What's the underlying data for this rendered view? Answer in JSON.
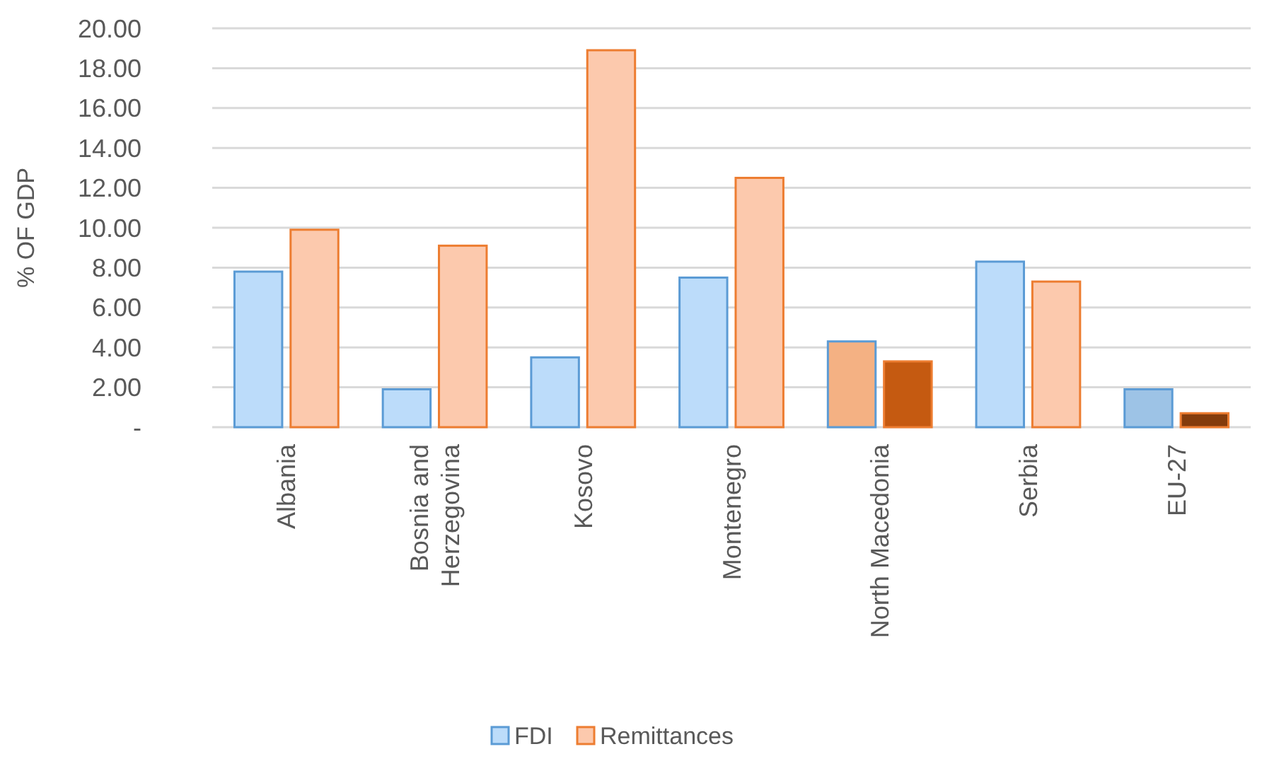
{
  "chart_data": {
    "type": "bar",
    "ylabel": "% OF GDP",
    "categories": [
      "Albania",
      "Bosnia and Herzegovina",
      "Kosovo",
      "Montenegro",
      "North Macedonia",
      "Serbia",
      "EU-27"
    ],
    "series": [
      {
        "name": "FDI",
        "color": "#5b9bd5",
        "colors": [
          "#bcdcfa",
          "#bcdcfa",
          "#bcdcfa",
          "#bcdcfa",
          "#f4b183",
          "#bcdcfa",
          "#9dc3e6"
        ],
        "values": [
          7.8,
          1.9,
          3.5,
          7.5,
          4.3,
          8.3,
          1.9
        ]
      },
      {
        "name": "Remittances",
        "color": "#ed7d31",
        "colors": [
          "#fcc9ad",
          "#fcc9ad",
          "#fcc9ad",
          "#fcc9ad",
          "#c55a11",
          "#fcc9ad",
          "#843c0c"
        ],
        "values": [
          9.9,
          9.1,
          18.9,
          12.5,
          3.3,
          7.3,
          0.7
        ]
      }
    ],
    "ylim": [
      0,
      20
    ],
    "yticks": [
      {
        "value": 0,
        "label": "-"
      },
      {
        "value": 2,
        "label": "2.00"
      },
      {
        "value": 4,
        "label": "4.00"
      },
      {
        "value": 6,
        "label": "6.00"
      },
      {
        "value": 8,
        "label": "8.00"
      },
      {
        "value": 10,
        "label": "10.00"
      },
      {
        "value": 12,
        "label": "12.00"
      },
      {
        "value": 14,
        "label": "14.00"
      },
      {
        "value": 16,
        "label": "16.00"
      },
      {
        "value": 18,
        "label": "18.00"
      },
      {
        "value": 20,
        "label": "20.00"
      }
    ],
    "grid": "y",
    "legend": "bottom"
  }
}
